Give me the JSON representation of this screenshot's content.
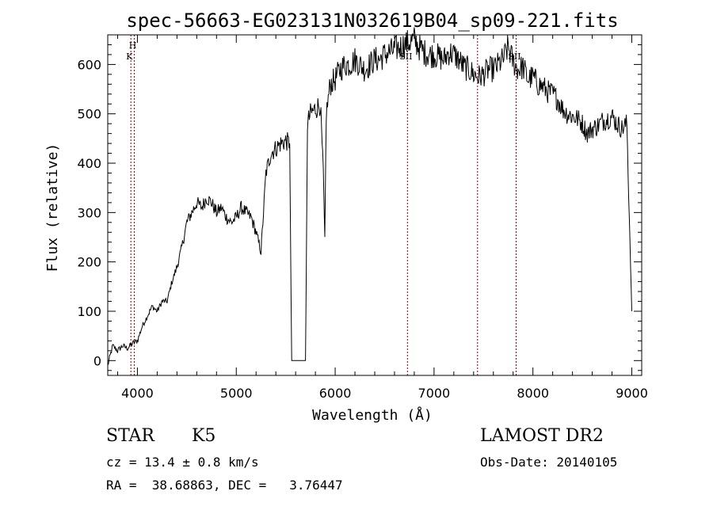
{
  "chart_data": {
    "type": "line",
    "title": "spec-56663-EG023131N032619B04_sp09-221.fits",
    "xlabel": "Wavelength (Å)",
    "ylabel": "Flux (relative)",
    "xlim": [
      3700,
      9100
    ],
    "ylim": [
      -30,
      660
    ],
    "xticks": [
      4000,
      5000,
      6000,
      7000,
      8000,
      9000
    ],
    "yticks": [
      0,
      100,
      200,
      300,
      400,
      500,
      600
    ],
    "grid": false,
    "line_color": "#000000",
    "marker_color": "#8b0000",
    "spectral_lines": [
      {
        "x": 3934,
        "label": "K"
      },
      {
        "x": 3969,
        "label": "H"
      },
      {
        "x": 6731,
        "label": "SII"
      },
      {
        "x": 7440,
        "label": ""
      },
      {
        "x": 7830,
        "label": "SII"
      }
    ],
    "series": [
      {
        "x": [
          3700,
          3750,
          3800,
          3850,
          3900,
          3950,
          4000,
          4050,
          4100,
          4150,
          4200,
          4250,
          4300,
          4350,
          4400,
          4450,
          4500,
          4550,
          4600,
          4650,
          4700,
          4750,
          4800,
          4850,
          4900,
          4950,
          5000,
          5050,
          5100,
          5150,
          5200,
          5250,
          5300,
          5350,
          5400,
          5450,
          5500,
          5540,
          5560,
          5600,
          5650,
          5700,
          5720,
          5750,
          5800,
          5850,
          5880,
          5895,
          5910,
          5930,
          5950,
          6000,
          6050,
          6100,
          6150,
          6200,
          6250,
          6300,
          6350,
          6400,
          6450,
          6500,
          6550,
          6600,
          6650,
          6700,
          6750,
          6800,
          6850,
          6900,
          6950,
          7000,
          7050,
          7100,
          7150,
          7200,
          7250,
          7300,
          7350,
          7400,
          7450,
          7500,
          7550,
          7600,
          7650,
          7700,
          7750,
          7800,
          7850,
          7900,
          7950,
          8000,
          8050,
          8100,
          8150,
          8200,
          8250,
          8300,
          8350,
          8400,
          8450,
          8500,
          8550,
          8600,
          8650,
          8700,
          8750,
          8800,
          8850,
          8900,
          8950,
          9000
        ],
        "y": [
          -10,
          30,
          20,
          30,
          25,
          35,
          40,
          70,
          90,
          110,
          100,
          120,
          120,
          160,
          190,
          230,
          280,
          300,
          320,
          310,
          330,
          320,
          300,
          310,
          290,
          280,
          290,
          310,
          300,
          290,
          260,
          220,
          380,
          420,
          430,
          440,
          445,
          440,
          0,
          0,
          0,
          0,
          480,
          500,
          510,
          520,
          380,
          240,
          500,
          530,
          560,
          570,
          590,
          600,
          600,
          610,
          600,
          590,
          600,
          610,
          610,
          620,
          625,
          630,
          635,
          640,
          645,
          650,
          635,
          625,
          620,
          620,
          615,
          610,
          625,
          620,
          610,
          595,
          590,
          580,
          575,
          580,
          590,
          590,
          600,
          610,
          635,
          605,
          590,
          595,
          570,
          575,
          560,
          555,
          545,
          540,
          530,
          510,
          500,
          495,
          490,
          480,
          460,
          470,
          475,
          485,
          490,
          495,
          480,
          470,
          480,
          100
        ]
      }
    ]
  },
  "info": {
    "object_class": "STAR",
    "subclass": "K5",
    "survey": "LAMOST DR2",
    "cz": "cz = 13.4 ± 0.8 km/s",
    "obs_date": "Obs-Date: 20140105",
    "coords": "RA =  38.68863, DEC =   3.76447"
  }
}
